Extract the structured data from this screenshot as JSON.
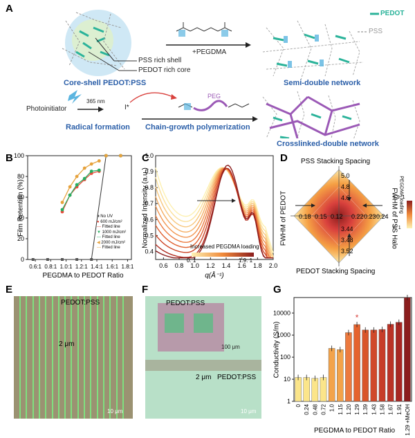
{
  "panel_letters": {
    "A": "A",
    "B": "B",
    "C": "C",
    "D": "D",
    "E": "E",
    "F": "F",
    "G": "G"
  },
  "panelA": {
    "pss_rich_shell": "PSS rich shell",
    "pedot_rich_core": "PEDOT rich core",
    "core_shell_title": "Core-shell PEDOT:PSS",
    "plus_pegdma": "+PEGDMA",
    "legend_pedot": "PEDOT",
    "legend_pss": "PSS",
    "semi_double": "Semi-double network",
    "photoinitiator": "Photoinitiator",
    "nm365": "365 nm",
    "radical_formation": "Radical formation",
    "i_star": "I*",
    "peg": "PEG",
    "chain_growth": "Chain-growth polymerization",
    "crosslinked_double": "Crosslinked-double network",
    "colors": {
      "pedot": "#2bb39a",
      "pss": "#aaaaaa",
      "peg": "#9b59b6",
      "title_blue": "#2a5ea8"
    }
  },
  "panelB": {
    "ylabel": "Film Retention (%)",
    "xlabel": "PEGDMA to PEDOT Ratio",
    "legend": [
      "No UV",
      "600 mJ/cm²",
      "Fitted line",
      "1000 mJ/cm²",
      "Fitted line",
      "2000 mJ/cm²",
      "Fitted line"
    ]
  },
  "panelC": {
    "ylabel": "Normalized Intensity (a.u.)",
    "xlabel": "q(Å⁻¹)",
    "legend_title": "Increased PEGDMA loading",
    "legend_min": "0: 1",
    "legend_max": "1.9: 1"
  },
  "panelD": {
    "top_title": "PSS Stacking Spacing",
    "bottom_title": "PEDOT Stacking Spacing",
    "left_title": "FWHM of PEDOT",
    "right_title": "FWHM of PSS Halo",
    "cbar_title": "PEGDMA loading",
    "cbar_max": "1.9: 1",
    "cbar_min": "0: 1",
    "top_ticks": [
      "5.0",
      "4.8",
      "4.6"
    ],
    "bottom_ticks": [
      "3.44",
      "3.48",
      "3.52"
    ],
    "left_ticks": [
      "0.18",
      "0.15",
      "0.12"
    ],
    "right_ticks": [
      "0.22",
      "0.23",
      "0.24"
    ]
  },
  "panelE": {
    "label": "PEDOT:PSS",
    "scale_2um": "2 μm",
    "scale_10um": "10 μm"
  },
  "panelF": {
    "label_top": "PEDOT:PSS",
    "label_bottom": "PEDOT:PSS",
    "scale_100um": "100 μm",
    "scale_2um": "2 μm",
    "scale_10um": "10 μm"
  },
  "panelG": {
    "ylabel": "Conductivity (S/m)",
    "xlabel": "PEGDMA to PEDOT Ratio",
    "star": "*"
  },
  "chart_data": [
    {
      "type": "scatter",
      "panel": "B",
      "xlabel": "PEGDMA to PEDOT Ratio",
      "ylabel": "Film Retention (%)",
      "ylim": [
        0,
        100
      ],
      "xticks": [
        "0.6:1",
        "0.8:1",
        "1.0:1",
        "1.2:1",
        "1.4:1",
        "1.6:1",
        "1.8:1"
      ],
      "yticks": [
        0,
        20,
        40,
        60,
        80,
        100
      ],
      "series": [
        {
          "name": "No UV",
          "x": [
            0.57,
            0.76,
            0.95,
            1.14,
            1.33,
            1.52,
            1.71
          ],
          "y": [
            0,
            0,
            0,
            0,
            0,
            100,
            100
          ],
          "color": "#555555"
        },
        {
          "name": "600 mJ/cm²",
          "x": [
            0.95,
            1.05,
            1.14,
            1.24,
            1.33,
            1.43,
            1.52,
            1.71
          ],
          "y": [
            46,
            62,
            70,
            77,
            83,
            85,
            100,
            100
          ],
          "color": "#e74c3c"
        },
        {
          "name": "1000 mJ/cm²",
          "x": [
            0.95,
            1.05,
            1.14,
            1.24,
            1.33,
            1.43,
            1.52,
            1.71
          ],
          "y": [
            48,
            62,
            72,
            78,
            85,
            86,
            100,
            100
          ],
          "color": "#27ae60"
        },
        {
          "name": "2000 mJ/cm²",
          "x": [
            0.95,
            1.05,
            1.14,
            1.24,
            1.33,
            1.43,
            1.52,
            1.71
          ],
          "y": [
            55,
            70,
            80,
            88,
            92,
            95,
            100,
            100
          ],
          "color": "#e6a23c"
        }
      ]
    },
    {
      "type": "line",
      "panel": "C",
      "xlabel": "q(Å⁻¹)",
      "ylabel": "Normalized Intensity (a.u.)",
      "xlim": [
        0.5,
        2.0
      ],
      "ylim": [
        0.35,
        1.0
      ],
      "xticks": [
        0.6,
        0.8,
        1.0,
        1.2,
        1.4,
        1.6,
        1.8,
        2.0
      ],
      "yticks": [
        0.4,
        0.5,
        0.6,
        0.7,
        0.8,
        0.9,
        1.0
      ]
    },
    {
      "type": "bar",
      "panel": "G",
      "categories": [
        "0",
        "0.24",
        "0.48",
        "0.72",
        "1.0",
        "1.15",
        "1.20",
        "1.29",
        "1.39",
        "1.43",
        "1.58",
        "1.67",
        "1.91",
        "1.29 +MeOH"
      ],
      "values": [
        12,
        12,
        11,
        12,
        250,
        220,
        1300,
        3000,
        1700,
        1700,
        1800,
        3100,
        3800,
        50000
      ],
      "ylabel": "Conductivity (S/m)",
      "xlabel": "PEGDMA to PEDOT Ratio",
      "yscale": "log",
      "ylim": [
        1,
        50000
      ],
      "yticks": [
        "1",
        "10",
        "100",
        "1000",
        "10000"
      ]
    }
  ]
}
